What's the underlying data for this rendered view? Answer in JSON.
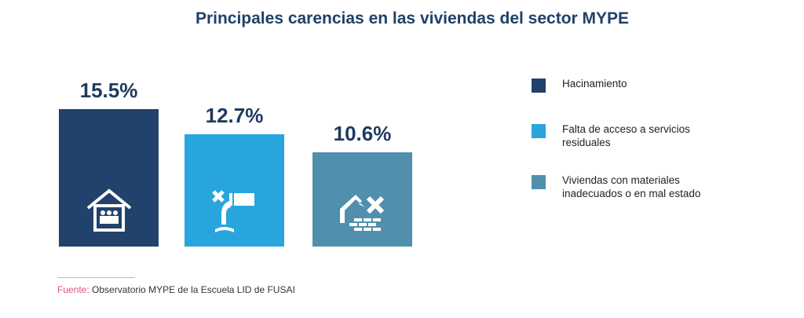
{
  "chart_data": {
    "type": "bar",
    "title": "Principales carencias en las viviendas del sector MYPE",
    "categories": [
      "Hacinamiento",
      "Falta de acceso a servicios residuales",
      "Viviendas con materiales inadecuados o en mal estado"
    ],
    "values": [
      15.5,
      12.7,
      10.6
    ],
    "labels": [
      "15.5%",
      "12.7%",
      "10.6%"
    ],
    "colors": [
      "#21426a",
      "#29a5de",
      "#508fad"
    ],
    "icons": [
      "house-crowd-icon",
      "no-drain-pipe-icon",
      "damaged-house-icon"
    ],
    "xlabel": "",
    "ylabel": "",
    "ylim": [
      0,
      15.5
    ],
    "grid": false,
    "legend": "right"
  },
  "source": {
    "label": "Fuente:",
    "text": " Observatorio MYPE de la Escuela LID de FUSAI"
  }
}
